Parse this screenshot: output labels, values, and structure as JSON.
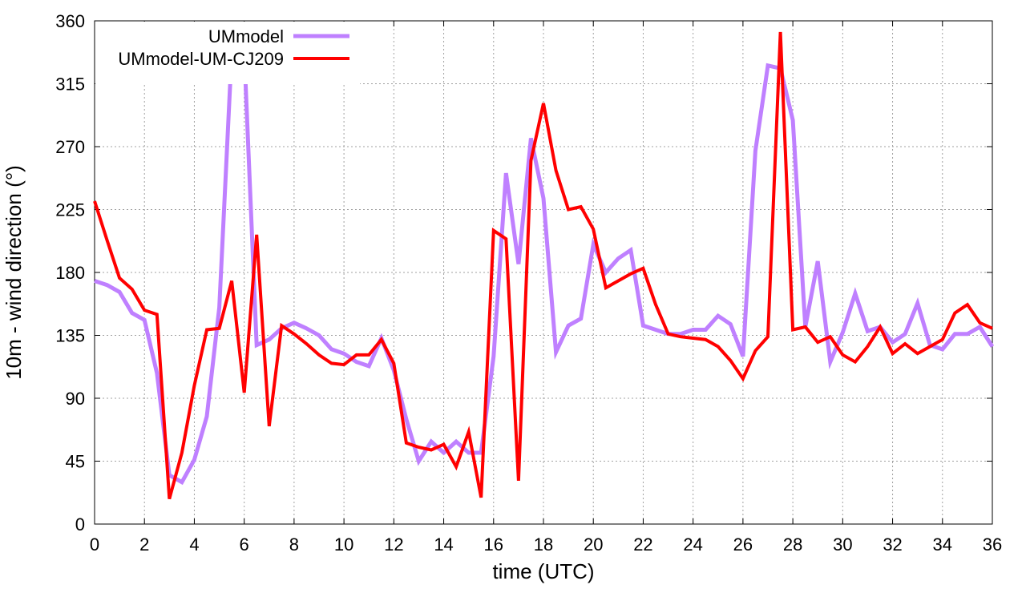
{
  "chart_data": {
    "type": "line",
    "title": "",
    "xlabel": "time (UTC)",
    "ylabel": "10m - wind direction (°)",
    "xlim": [
      0,
      36
    ],
    "ylim": [
      0,
      360
    ],
    "xticks": [
      0,
      2,
      4,
      6,
      8,
      10,
      12,
      14,
      16,
      18,
      20,
      22,
      24,
      26,
      28,
      30,
      32,
      34,
      36
    ],
    "yticks": [
      0,
      45,
      90,
      135,
      180,
      225,
      270,
      315,
      360
    ],
    "x_tick_labels": [
      "0",
      "2",
      "4",
      "6",
      "8",
      "10",
      "12",
      "14",
      "16",
      "18",
      "20",
      "22",
      "24",
      "26",
      "28",
      "30",
      "32",
      "34",
      "36"
    ],
    "y_tick_labels": [
      "0",
      "45",
      "90",
      "135",
      "180",
      "225",
      "270",
      "315",
      "360"
    ],
    "grid": true,
    "legend_position": "top-left",
    "series": [
      {
        "name": "UMmodel",
        "color": "#bf80ff",
        "x": [
          0,
          0.5,
          1,
          1.5,
          2,
          2.5,
          3,
          3.5,
          4,
          4.5,
          5,
          5.5,
          6,
          6.5,
          7,
          7.5,
          8,
          8.5,
          9,
          9.5,
          10,
          10.5,
          11,
          11.5,
          12,
          12.5,
          13,
          13.5,
          14,
          14.5,
          15,
          15.5,
          16,
          16.5,
          17,
          17.5,
          18,
          18.5,
          19,
          19.5,
          20,
          20.5,
          21,
          21.5,
          22,
          22.5,
          23,
          23.5,
          24,
          24.5,
          25,
          25.5,
          26,
          26.5,
          27,
          27.5,
          28,
          28.5,
          29,
          29.5,
          30,
          30.5,
          31,
          31.5,
          32,
          32.5,
          33,
          33.5,
          34,
          34.5,
          35,
          35.5,
          36
        ],
        "values": [
          174,
          171,
          166,
          151,
          146,
          108,
          35,
          30,
          46,
          77,
          155,
          338,
          338,
          128,
          132,
          140,
          144,
          140,
          135,
          125,
          122,
          116,
          113,
          133,
          110,
          75,
          45,
          59,
          51,
          59,
          51,
          51,
          120,
          251,
          186,
          276,
          233,
          123,
          142,
          147,
          200,
          180,
          190,
          196,
          142,
          139,
          136,
          136,
          139,
          139,
          149,
          143,
          120,
          267,
          328,
          326,
          289,
          141,
          188,
          116,
          137,
          165,
          138,
          141,
          130,
          136,
          158,
          128,
          125,
          136,
          136,
          141,
          127
        ]
      },
      {
        "name": "UMmodel-UM-CJ209",
        "color": "#ff0000",
        "x": [
          0,
          0.5,
          1,
          1.5,
          2,
          2.5,
          3,
          3.5,
          4,
          4.5,
          5,
          5.5,
          6,
          6.5,
          7,
          7.5,
          8,
          8.5,
          9,
          9.5,
          10,
          10.5,
          11,
          11.5,
          12,
          12.5,
          13,
          13.5,
          14,
          14.5,
          15,
          15.5,
          16,
          16.5,
          17,
          17.5,
          18,
          18.5,
          19,
          19.5,
          20,
          20.5,
          21,
          21.5,
          22,
          22.5,
          23,
          23.5,
          24,
          24.5,
          25,
          25.5,
          26,
          26.5,
          27,
          27.5,
          28,
          28.5,
          29,
          29.5,
          30,
          30.5,
          31,
          31.5,
          32,
          32.5,
          33,
          33.5,
          34,
          34.5,
          35,
          35.5,
          36
        ],
        "values": [
          231,
          203,
          176,
          168,
          153,
          150,
          18,
          51,
          99,
          139,
          140,
          174,
          94,
          207,
          70,
          142,
          136,
          129,
          121,
          115,
          114,
          121,
          121,
          132,
          115,
          58,
          55,
          53,
          57,
          41,
          66,
          19,
          210,
          204,
          31,
          260,
          301,
          253,
          225,
          227,
          211,
          169,
          174,
          179,
          183,
          157,
          136,
          134,
          133,
          132,
          127,
          117,
          104,
          124,
          134,
          352,
          139,
          141,
          130,
          134,
          121,
          116,
          127,
          141,
          122,
          129,
          122,
          127,
          132,
          151,
          157,
          144,
          140
        ]
      }
    ]
  }
}
